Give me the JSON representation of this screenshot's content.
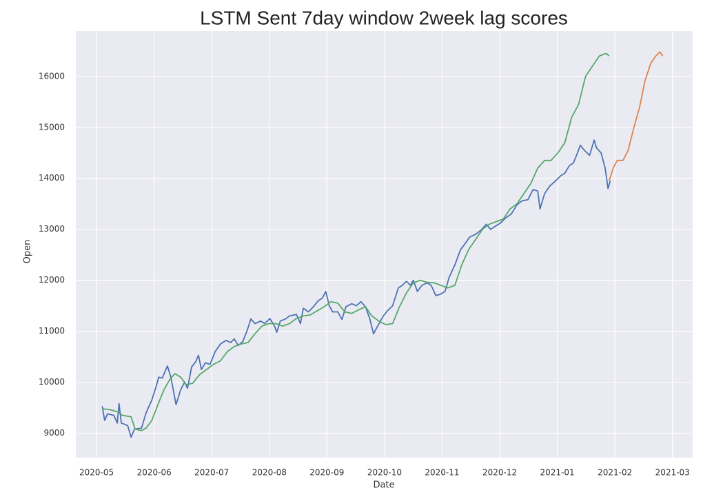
{
  "chart_data": {
    "type": "line",
    "title": "LSTM Sent 7day window 2week lag scores",
    "x_label": "Date",
    "y_label": "Open",
    "xlim": [
      -0.36,
      10.35
    ],
    "ylim": [
      8520,
      16890
    ],
    "grid": true,
    "xticks": [
      {
        "value": 0,
        "label": "2020-05"
      },
      {
        "value": 1,
        "label": "2020-06"
      },
      {
        "value": 2,
        "label": "2020-07"
      },
      {
        "value": 3,
        "label": "2020-08"
      },
      {
        "value": 4,
        "label": "2020-09"
      },
      {
        "value": 5,
        "label": "2020-10"
      },
      {
        "value": 6,
        "label": "2020-11"
      },
      {
        "value": 7,
        "label": "2020-12"
      },
      {
        "value": 8,
        "label": "2021-01"
      },
      {
        "value": 9,
        "label": "2021-02"
      },
      {
        "value": 10,
        "label": "2021-03"
      }
    ],
    "yticks": [
      9000,
      10000,
      11000,
      12000,
      13000,
      14000,
      15000,
      16000
    ],
    "series": [
      {
        "color": "#4c72b0",
        "x": [
          0.1,
          0.14,
          0.19,
          0.3,
          0.36,
          0.39,
          0.43,
          0.54,
          0.6,
          0.66,
          0.78,
          0.86,
          0.96,
          1.03,
          1.08,
          1.14,
          1.23,
          1.29,
          1.38,
          1.46,
          1.53,
          1.58,
          1.65,
          1.72,
          1.77,
          1.82,
          1.89,
          1.97,
          2.06,
          2.15,
          2.25,
          2.33,
          2.39,
          2.46,
          2.54,
          2.61,
          2.68,
          2.75,
          2.85,
          2.92,
          3.01,
          3.09,
          3.13,
          3.19,
          3.28,
          3.35,
          3.47,
          3.54,
          3.59,
          3.68,
          3.78,
          3.85,
          3.92,
          3.98,
          4.04,
          4.1,
          4.19,
          4.26,
          4.33,
          4.43,
          4.51,
          4.59,
          4.67,
          4.74,
          4.81,
          4.88,
          4.98,
          5.05,
          5.14,
          5.24,
          5.31,
          5.38,
          5.45,
          5.5,
          5.57,
          5.65,
          5.74,
          5.81,
          5.89,
          5.96,
          6.05,
          6.12,
          6.22,
          6.32,
          6.4,
          6.48,
          6.58,
          6.67,
          6.77,
          6.84,
          6.91,
          7.01,
          7.1,
          7.2,
          7.3,
          7.39,
          7.49,
          7.58,
          7.66,
          7.7,
          7.78,
          7.87,
          7.97,
          8.06,
          8.13,
          8.21,
          8.28,
          8.35,
          8.4,
          8.47,
          8.56,
          8.64,
          8.68,
          8.76,
          8.83,
          8.88,
          8.92
        ],
        "values": [
          9530,
          9250,
          9380,
          9350,
          9200,
          9580,
          9200,
          9150,
          8920,
          9080,
          9100,
          9400,
          9650,
          9900,
          10100,
          10080,
          10320,
          10100,
          9560,
          9850,
          10000,
          9880,
          10300,
          10400,
          10530,
          10250,
          10380,
          10350,
          10600,
          10750,
          10820,
          10780,
          10850,
          10720,
          10800,
          11000,
          11240,
          11150,
          11200,
          11150,
          11250,
          11100,
          10980,
          11200,
          11240,
          11300,
          11330,
          11150,
          11450,
          11380,
          11500,
          11600,
          11650,
          11780,
          11500,
          11380,
          11380,
          11230,
          11480,
          11540,
          11500,
          11580,
          11480,
          11260,
          10950,
          11100,
          11300,
          11400,
          11500,
          11850,
          11900,
          11980,
          11900,
          12000,
          11780,
          11900,
          11950,
          11900,
          11700,
          11720,
          11780,
          12050,
          12300,
          12600,
          12720,
          12850,
          12900,
          12980,
          13100,
          13000,
          13050,
          13120,
          13220,
          13300,
          13480,
          13560,
          13580,
          13780,
          13750,
          13400,
          13700,
          13850,
          13950,
          14050,
          14100,
          14250,
          14300,
          14500,
          14650,
          14550,
          14450,
          14750,
          14600,
          14500,
          14200,
          13800,
          13950
        ]
      },
      {
        "color": "#55a868",
        "x": [
          0.1,
          0.24,
          0.36,
          0.45,
          0.6,
          0.67,
          0.78,
          0.86,
          0.96,
          1.08,
          1.17,
          1.27,
          1.36,
          1.46,
          1.56,
          1.67,
          1.79,
          1.91,
          2.03,
          2.15,
          2.27,
          2.39,
          2.51,
          2.63,
          2.75,
          2.87,
          2.99,
          3.11,
          3.23,
          3.35,
          3.47,
          3.59,
          3.71,
          3.83,
          3.95,
          4.07,
          4.19,
          4.31,
          4.43,
          4.55,
          4.67,
          4.78,
          4.9,
          5.02,
          5.14,
          5.26,
          5.38,
          5.5,
          5.62,
          5.74,
          5.86,
          5.98,
          6.1,
          6.22,
          6.34,
          6.46,
          6.58,
          6.7,
          6.82,
          6.94,
          7.06,
          7.18,
          7.3,
          7.42,
          7.54,
          7.66,
          7.78,
          7.89,
          8.01,
          8.13,
          8.25,
          8.37,
          8.49,
          8.61,
          8.73,
          8.85,
          8.9
        ],
        "values": [
          9480,
          9460,
          9420,
          9350,
          9320,
          9080,
          9050,
          9100,
          9250,
          9600,
          9850,
          10050,
          10170,
          10100,
          9950,
          9980,
          10150,
          10250,
          10350,
          10420,
          10600,
          10700,
          10750,
          10780,
          10950,
          11100,
          11150,
          11150,
          11100,
          11150,
          11250,
          11300,
          11320,
          11400,
          11480,
          11580,
          11550,
          11380,
          11350,
          11420,
          11480,
          11300,
          11200,
          11130,
          11150,
          11480,
          11750,
          11950,
          12000,
          11960,
          11950,
          11900,
          11850,
          11900,
          12300,
          12600,
          12800,
          13000,
          13100,
          13150,
          13200,
          13400,
          13500,
          13700,
          13900,
          14200,
          14350,
          14350,
          14500,
          14700,
          15200,
          15450,
          16000,
          16200,
          16400,
          16450,
          16400
        ]
      },
      {
        "color": "#dd8452",
        "x": [
          8.9,
          8.97,
          9.04,
          9.14,
          9.23,
          9.33,
          9.43,
          9.52,
          9.62,
          9.71,
          9.78,
          9.83
        ],
        "values": [
          13950,
          14200,
          14350,
          14350,
          14550,
          15000,
          15400,
          15900,
          16250,
          16400,
          16480,
          16400
        ]
      }
    ]
  }
}
